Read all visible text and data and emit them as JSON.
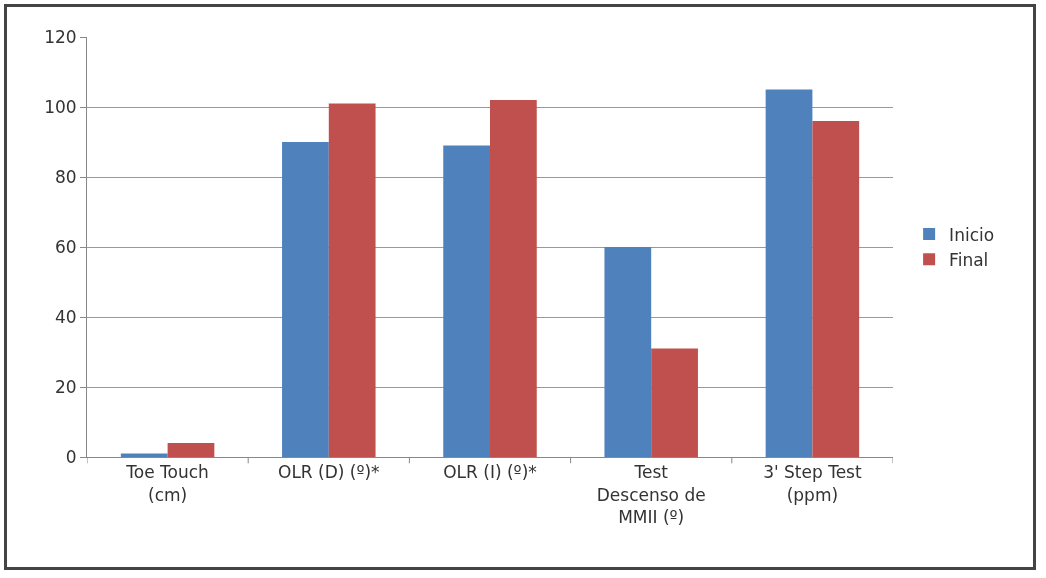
{
  "chart_data": {
    "type": "bar",
    "categories": [
      "Toe Touch\n(cm)",
      "OLR (D) (º)*",
      "OLR (I) (º)*",
      "Test\nDescenso de\nMMII (º)",
      "3' Step Test\n(ppm)"
    ],
    "series": [
      {
        "name": "Inicio",
        "color": "#4f81bd",
        "values": [
          1,
          90,
          89,
          60,
          105
        ]
      },
      {
        "name": "Final",
        "color": "#c0504d",
        "values": [
          4,
          101,
          102,
          31,
          96
        ]
      }
    ],
    "ylim": [
      0,
      120
    ],
    "yticks": [
      0,
      20,
      40,
      60,
      80,
      100,
      120
    ],
    "grid": "y",
    "legend": "right"
  }
}
